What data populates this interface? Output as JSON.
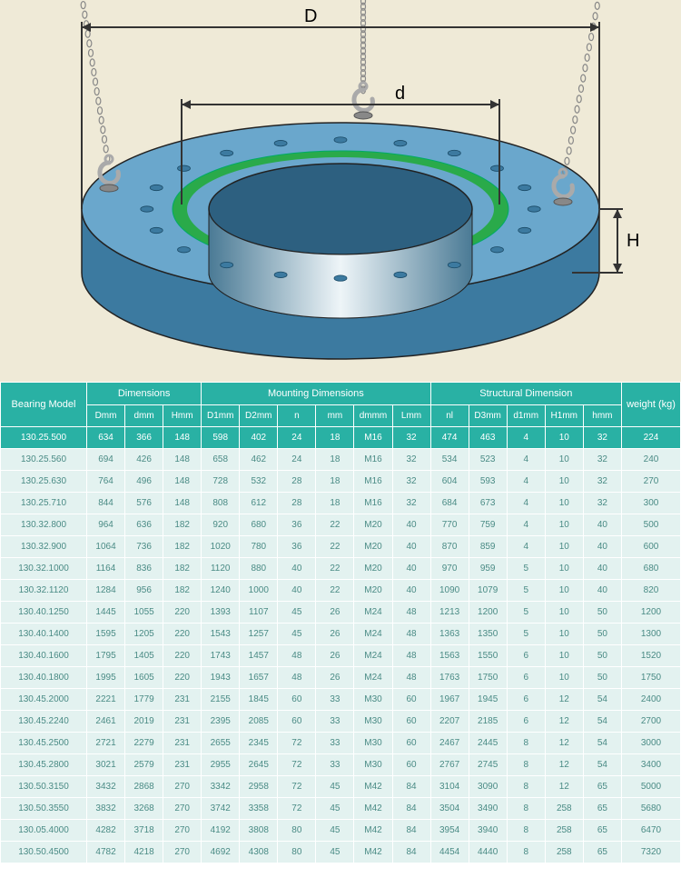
{
  "diagram": {
    "bg": "#efead7",
    "ring_top": "#6aa7cc",
    "ring_side": "#3c7aa0",
    "ring_inner": "#2d6080",
    "seal": "#2aaa4a",
    "hole": "#3c7aa0",
    "chain": "#888888",
    "hook": "#aaaaaa",
    "labels": {
      "D": "D",
      "d": "d",
      "H": "H"
    },
    "dim_line": "#333333",
    "label_fontsize": 20
  },
  "table": {
    "header_bg": "#29b1a4",
    "header_fg": "#ffffff",
    "row_bg": "#e3f2f0",
    "row_fg": "#4a8b85",
    "groups": [
      "Bearing Model",
      "Dimensions",
      "Mounting Dimensions",
      "Structural Dimension",
      "weight (kg)"
    ],
    "columns": [
      "Bearing Model",
      "Dmm",
      "dmm",
      "Hmm",
      "D1mm",
      "D2mm",
      "n",
      "mm",
      "dmmm",
      "Lmm",
      "nl",
      "D3mm",
      "d1mm",
      "H1mm",
      "hmm",
      "weight (kg)"
    ],
    "highlight_row": 0,
    "rows": [
      [
        "130.25.500",
        "634",
        "366",
        "148",
        "598",
        "402",
        "24",
        "18",
        "M16",
        "32",
        "474",
        "463",
        "4",
        "10",
        "32",
        "224"
      ],
      [
        "130.25.560",
        "694",
        "426",
        "148",
        "658",
        "462",
        "24",
        "18",
        "M16",
        "32",
        "534",
        "523",
        "4",
        "10",
        "32",
        "240"
      ],
      [
        "130.25.630",
        "764",
        "496",
        "148",
        "728",
        "532",
        "28",
        "18",
        "M16",
        "32",
        "604",
        "593",
        "4",
        "10",
        "32",
        "270"
      ],
      [
        "130.25.710",
        "844",
        "576",
        "148",
        "808",
        "612",
        "28",
        "18",
        "M16",
        "32",
        "684",
        "673",
        "4",
        "10",
        "32",
        "300"
      ],
      [
        "130.32.800",
        "964",
        "636",
        "182",
        "920",
        "680",
        "36",
        "22",
        "M20",
        "40",
        "770",
        "759",
        "4",
        "10",
        "40",
        "500"
      ],
      [
        "130.32.900",
        "1064",
        "736",
        "182",
        "1020",
        "780",
        "36",
        "22",
        "M20",
        "40",
        "870",
        "859",
        "4",
        "10",
        "40",
        "600"
      ],
      [
        "130.32.1000",
        "1164",
        "836",
        "182",
        "1120",
        "880",
        "40",
        "22",
        "M20",
        "40",
        "970",
        "959",
        "5",
        "10",
        "40",
        "680"
      ],
      [
        "130.32.1120",
        "1284",
        "956",
        "182",
        "1240",
        "1000",
        "40",
        "22",
        "M20",
        "40",
        "1090",
        "1079",
        "5",
        "10",
        "40",
        "820"
      ],
      [
        "130.40.1250",
        "1445",
        "1055",
        "220",
        "1393",
        "1107",
        "45",
        "26",
        "M24",
        "48",
        "1213",
        "1200",
        "5",
        "10",
        "50",
        "1200"
      ],
      [
        "130.40.1400",
        "1595",
        "1205",
        "220",
        "1543",
        "1257",
        "45",
        "26",
        "M24",
        "48",
        "1363",
        "1350",
        "5",
        "10",
        "50",
        "1300"
      ],
      [
        "130.40.1600",
        "1795",
        "1405",
        "220",
        "1743",
        "1457",
        "48",
        "26",
        "M24",
        "48",
        "1563",
        "1550",
        "6",
        "10",
        "50",
        "1520"
      ],
      [
        "130.40.1800",
        "1995",
        "1605",
        "220",
        "1943",
        "1657",
        "48",
        "26",
        "M24",
        "48",
        "1763",
        "1750",
        "6",
        "10",
        "50",
        "1750"
      ],
      [
        "130.45.2000",
        "2221",
        "1779",
        "231",
        "2155",
        "1845",
        "60",
        "33",
        "M30",
        "60",
        "1967",
        "1945",
        "6",
        "12",
        "54",
        "2400"
      ],
      [
        "130.45.2240",
        "2461",
        "2019",
        "231",
        "2395",
        "2085",
        "60",
        "33",
        "M30",
        "60",
        "2207",
        "2185",
        "6",
        "12",
        "54",
        "2700"
      ],
      [
        "130.45.2500",
        "2721",
        "2279",
        "231",
        "2655",
        "2345",
        "72",
        "33",
        "M30",
        "60",
        "2467",
        "2445",
        "8",
        "12",
        "54",
        "3000"
      ],
      [
        "130.45.2800",
        "3021",
        "2579",
        "231",
        "2955",
        "2645",
        "72",
        "33",
        "M30",
        "60",
        "2767",
        "2745",
        "8",
        "12",
        "54",
        "3400"
      ],
      [
        "130.50.3150",
        "3432",
        "2868",
        "270",
        "3342",
        "2958",
        "72",
        "45",
        "M42",
        "84",
        "3104",
        "3090",
        "8",
        "12",
        "65",
        "5000"
      ],
      [
        "130.50.3550",
        "3832",
        "3268",
        "270",
        "3742",
        "3358",
        "72",
        "45",
        "M42",
        "84",
        "3504",
        "3490",
        "8",
        "258",
        "65",
        "5680"
      ],
      [
        "130.05.4000",
        "4282",
        "3718",
        "270",
        "4192",
        "3808",
        "80",
        "45",
        "M42",
        "84",
        "3954",
        "3940",
        "8",
        "258",
        "65",
        "6470"
      ],
      [
        "130.50.4500",
        "4782",
        "4218",
        "270",
        "4692",
        "4308",
        "80",
        "45",
        "M42",
        "84",
        "4454",
        "4440",
        "8",
        "258",
        "65",
        "7320"
      ]
    ]
  }
}
